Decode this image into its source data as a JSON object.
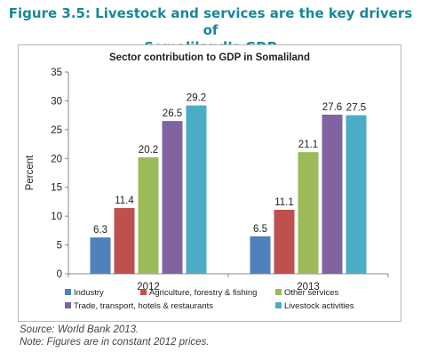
{
  "figure": {
    "title_line1": "Figure 3.5: Livestock and services are the key drivers of",
    "title_line2": "Somaliland’s GDP"
  },
  "chart_data": {
    "type": "bar",
    "title": "Sector contribution to GDP in Somaliland",
    "ylabel": "Percent",
    "xlabel": "",
    "categories": [
      "2012",
      "2013"
    ],
    "ylim": [
      0,
      35
    ],
    "yticks": [
      0,
      5,
      10,
      15,
      20,
      25,
      30,
      35
    ],
    "grid": false,
    "legend_position": "bottom",
    "series": [
      {
        "name": "Industry",
        "values": [
          6.3,
          6.5
        ],
        "color": "#4f81bd",
        "labels": [
          "6.3",
          "6.5"
        ]
      },
      {
        "name": "Agriculture, forestry & fishing",
        "values": [
          11.4,
          11.1
        ],
        "color": "#c0504d",
        "labels": [
          "11.4",
          "11.1"
        ]
      },
      {
        "name": "Other services",
        "values": [
          20.2,
          21.1
        ],
        "color": "#9bbb59",
        "labels": [
          "20.2",
          "21.1"
        ]
      },
      {
        "name": "Trade, transport, hotels & restaurants",
        "values": [
          26.5,
          27.6
        ],
        "color": "#8064a2",
        "labels": [
          "26.5",
          "27.6"
        ]
      },
      {
        "name": "Livestock activities",
        "values": [
          29.2,
          27.5
        ],
        "color": "#4bacc6",
        "labels": [
          "29.2",
          "27.5"
        ]
      }
    ]
  },
  "notes": {
    "source": "Source: World Bank 2013.",
    "note": "Note: Figures are in constant 2012 prices."
  }
}
